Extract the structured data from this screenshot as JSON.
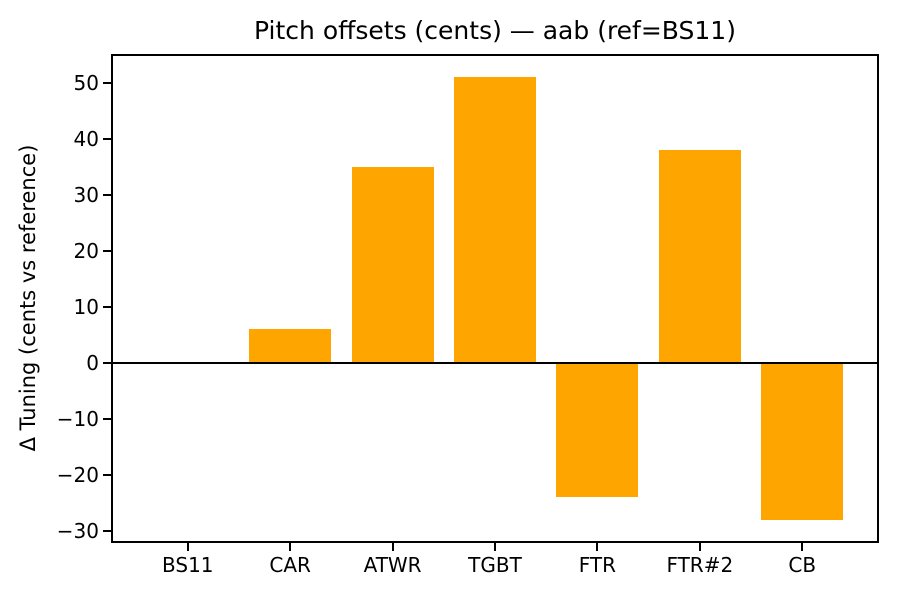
{
  "chart_data": {
    "type": "bar",
    "title": "Pitch offsets (cents) — aab (ref=BS11)",
    "xlabel": "",
    "ylabel": "Δ Tuning (cents vs reference)",
    "categories": [
      "BS11",
      "CAR",
      "ATWR",
      "TGBT",
      "FTR",
      "FTR#2",
      "CB"
    ],
    "values": [
      0,
      6,
      35,
      51,
      -24,
      38,
      -28
    ],
    "yticks": [
      -30,
      -20,
      -10,
      0,
      10,
      20,
      30,
      40,
      50
    ],
    "ylim": [
      -31.95,
      54.95
    ],
    "bar_color": "#FFA500",
    "bar_width_frac": 0.8,
    "zero_line": true,
    "grid": false,
    "legend": null,
    "axis_color": "#000000",
    "background_color": "#FFFFFF"
  }
}
